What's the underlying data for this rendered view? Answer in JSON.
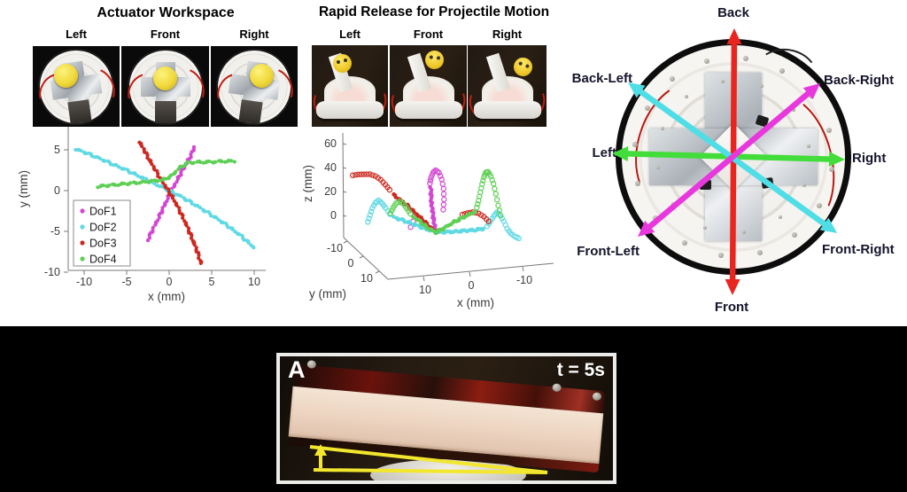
{
  "figure": {
    "background": "#ffffff",
    "banner_color": "#000000"
  },
  "panels": {
    "workspace": {
      "title": "Actuator Workspace",
      "photo_labels": [
        "Left",
        "Front",
        "Right"
      ]
    },
    "release": {
      "title": "Rapid Release for Projectile Motion",
      "photo_labels": [
        "Left",
        "Front",
        "Right"
      ]
    },
    "compass": {
      "directions": [
        "Back",
        "Back-Right",
        "Right",
        "Front-Right",
        "Front",
        "Front-Left",
        "Left",
        "Back-Left"
      ],
      "axis_colors": {
        "back_front": "#e8261f",
        "left_right": "#42dd3a",
        "backleft_frontright": "#4fdde6",
        "backright_frontleft": "#e838dd"
      }
    },
    "snapshot": {
      "corner_label": "A",
      "time_label": "t = 5s",
      "angle_annotation_color": "#f2e72e"
    }
  },
  "chart_data": [
    {
      "type": "scatter",
      "title": "",
      "xlabel": "x (mm)",
      "ylabel": "y (mm)",
      "xlim": [
        -11.5,
        11
      ],
      "ylim": [
        -10,
        6.8
      ],
      "xticks": [
        -10,
        -5,
        0,
        5,
        10
      ],
      "yticks": [
        -10,
        -5,
        0,
        5
      ],
      "grid": false,
      "legend": {
        "position": "lower-left",
        "entries": [
          {
            "label": "DoF1",
            "color": "#d445d4"
          },
          {
            "label": "DoF2",
            "color": "#5fd9e4"
          },
          {
            "label": "DoF3",
            "color": "#cc2a21"
          },
          {
            "label": "DoF4",
            "color": "#5ecf55"
          }
        ]
      },
      "series": [
        {
          "name": "DoF1",
          "color": "#d445d4",
          "points": [
            [
              -2.5,
              -6
            ],
            [
              -1.7,
              -4.3
            ],
            [
              -0.9,
              -2.6
            ],
            [
              -0.2,
              -1
            ],
            [
              0.5,
              0.4
            ],
            [
              1.2,
              1.8
            ],
            [
              1.9,
              3.1
            ],
            [
              2.6,
              4.4
            ],
            [
              3,
              5.4
            ]
          ]
        },
        {
          "name": "DoF2",
          "color": "#5fd9e4",
          "points": [
            [
              -11,
              5.1
            ],
            [
              -9,
              4.3
            ],
            [
              -7,
              3.4
            ],
            [
              -5,
              2.5
            ],
            [
              -3,
              1.5
            ],
            [
              -1,
              0.5
            ],
            [
              1,
              -0.5
            ],
            [
              3,
              -1.7
            ],
            [
              5,
              -3
            ],
            [
              7,
              -4.4
            ],
            [
              8.5,
              -5.6
            ],
            [
              10,
              -7
            ]
          ]
        },
        {
          "name": "DoF3",
          "color": "#cc2a21",
          "points": [
            [
              -3.5,
              6
            ],
            [
              -2.7,
              4.5
            ],
            [
              -1.9,
              3
            ],
            [
              -1.1,
              1.6
            ],
            [
              -0.3,
              0.3
            ],
            [
              0.5,
              -1
            ],
            [
              1.2,
              -2.4
            ],
            [
              1.9,
              -3.9
            ],
            [
              2.6,
              -5.6
            ],
            [
              3.2,
              -7.2
            ],
            [
              3.8,
              -9
            ]
          ]
        },
        {
          "name": "DoF4",
          "color": "#5ecf55",
          "points": [
            [
              -8.4,
              0.5
            ],
            [
              -6.5,
              0.7
            ],
            [
              -4.5,
              0.9
            ],
            [
              -2.5,
              1.1
            ],
            [
              -0.8,
              1.3
            ],
            [
              0.3,
              1.8
            ],
            [
              1.2,
              2.8
            ],
            [
              2.2,
              3.4
            ],
            [
              3.5,
              3.5
            ],
            [
              5,
              3.5
            ],
            [
              6.3,
              3.6
            ],
            [
              7.6,
              3.6
            ]
          ]
        }
      ]
    },
    {
      "type": "scatter3d",
      "title": "",
      "xlabel": "x (mm)",
      "ylabel": "y (mm)",
      "zlabel": "z (mm)",
      "xticks": [
        10,
        0,
        -10
      ],
      "yticks": [
        -10,
        0,
        10
      ],
      "zticks": [
        0,
        20,
        40,
        60
      ],
      "zlim": [
        -15,
        60
      ],
      "series": [
        {
          "name": "DoF1",
          "color": "#d445d4",
          "solid": [
            [
              [
                0,
                0,
                0
              ],
              [
                0.3,
                -0.6,
                10
              ],
              [
                0.5,
                -1,
                20
              ],
              [
                0.5,
                -1.2,
                30
              ]
            ]
          ],
          "circles": [
            [
              [
                0.6,
                -1.4,
                33
              ],
              [
                0.2,
                -1.6,
                37
              ],
              [
                -0.3,
                -1.4,
                41
              ],
              [
                -0.8,
                -1,
                43
              ],
              [
                -1.4,
                -0.4,
                42
              ],
              [
                -1.8,
                0.2,
                38
              ],
              [
                -2,
                0.8,
                32
              ],
              [
                -1.8,
                1.4,
                25
              ],
              [
                -1.4,
                1.8,
                18
              ]
            ],
            [
              [
                5.5,
                2,
                12
              ],
              [
                7,
                2.5,
                4
              ]
            ]
          ]
        },
        {
          "name": "DoF2",
          "color": "#5fd9e4",
          "solid": [
            [
              [
                0,
                0,
                0
              ],
              [
                3,
                1.5,
                3
              ],
              [
                6,
                2.5,
                6
              ],
              [
                9,
                3.5,
                9
              ],
              [
                11.5,
                4,
                11
              ]
            ],
            [
              [
                0,
                0,
                0
              ],
              [
                -3,
                1,
                2
              ],
              [
                -6,
                1.5,
                4
              ],
              [
                -9,
                2,
                6
              ],
              [
                -11,
                2.5,
                8
              ]
            ]
          ],
          "circles": [
            [
              [
                12.5,
                4,
                13
              ],
              [
                13.5,
                4,
                17
              ],
              [
                14.3,
                4,
                20
              ],
              [
                15.2,
                4,
                22
              ],
              [
                16,
                4,
                20
              ],
              [
                16.8,
                4,
                16
              ],
              [
                17.4,
                4,
                11
              ],
              [
                18,
                4,
                6
              ]
            ],
            [
              [
                -11.8,
                2.6,
                10
              ],
              [
                -12.6,
                2.8,
                14
              ],
              [
                -13.4,
                3,
                18
              ],
              [
                -14.2,
                3,
                21
              ],
              [
                -15,
                3,
                19
              ],
              [
                -15.8,
                3,
                15
              ],
              [
                -16.6,
                3,
                10
              ],
              [
                -17.4,
                3,
                7
              ],
              [
                -18.4,
                3,
                5
              ],
              [
                -19.4,
                3,
                4
              ]
            ]
          ]
        },
        {
          "name": "DoF3",
          "color": "#cc2a21",
          "solid": [
            [
              [
                0,
                0,
                0
              ],
              [
                2,
                -0.5,
                5
              ],
              [
                4,
                -1,
                10
              ],
              [
                6,
                -1.5,
                15
              ],
              [
                8,
                -2,
                19
              ],
              [
                9.5,
                -2,
                22
              ]
            ]
          ],
          "circles": [
            [
              [
                10.3,
                -2.2,
                25
              ],
              [
                11.2,
                -2.5,
                28
              ],
              [
                12.2,
                -2.8,
                31
              ],
              [
                13.4,
                -3,
                33
              ],
              [
                14.8,
                -3,
                34
              ],
              [
                16.2,
                -3,
                33.5
              ],
              [
                17.6,
                -3,
                33
              ],
              [
                19,
                -3,
                32
              ]
            ],
            [
              [
                -6,
                2,
                16
              ],
              [
                -7.3,
                2,
                17.5
              ],
              [
                -8.6,
                2,
                18.5
              ],
              [
                -10,
                2,
                18
              ],
              [
                -11.3,
                2,
                16
              ],
              [
                -12.4,
                2,
                13
              ]
            ]
          ]
        },
        {
          "name": "DoF4",
          "color": "#5ecf55",
          "solid": [
            [
              [
                0,
                0,
                0
              ],
              [
                -2,
                0.5,
                4
              ],
              [
                -4,
                1,
                9
              ],
              [
                -6,
                1.5,
                13
              ],
              [
                -8,
                2,
                17
              ],
              [
                -9,
                2,
                19
              ]
            ],
            [
              [
                0,
                0,
                0
              ],
              [
                2,
                1,
                3
              ],
              [
                4,
                1.5,
                7
              ],
              [
                6,
                2,
                11
              ]
            ]
          ],
          "circles": [
            [
              [
                6.8,
                2,
                13
              ],
              [
                7.6,
                2,
                16.5
              ],
              [
                8.4,
                2,
                19.5
              ],
              [
                9.3,
                2,
                21
              ],
              [
                10.2,
                2,
                19.5
              ],
              [
                11,
                2,
                16
              ],
              [
                11.7,
                2,
                12
              ]
            ],
            [
              [
                -9.6,
                2,
                22
              ],
              [
                -10.1,
                2,
                27
              ],
              [
                -10.6,
                2,
                33
              ],
              [
                -11.1,
                2,
                39
              ],
              [
                -11.6,
                2,
                44
              ],
              [
                -12.1,
                2,
                47.5
              ],
              [
                -12.7,
                2,
                48
              ],
              [
                -13.3,
                2,
                45
              ],
              [
                -13.9,
                2,
                40
              ],
              [
                -14.4,
                2,
                33
              ],
              [
                -14.9,
                2,
                25
              ],
              [
                -15.4,
                2,
                18
              ]
            ]
          ]
        }
      ]
    }
  ]
}
